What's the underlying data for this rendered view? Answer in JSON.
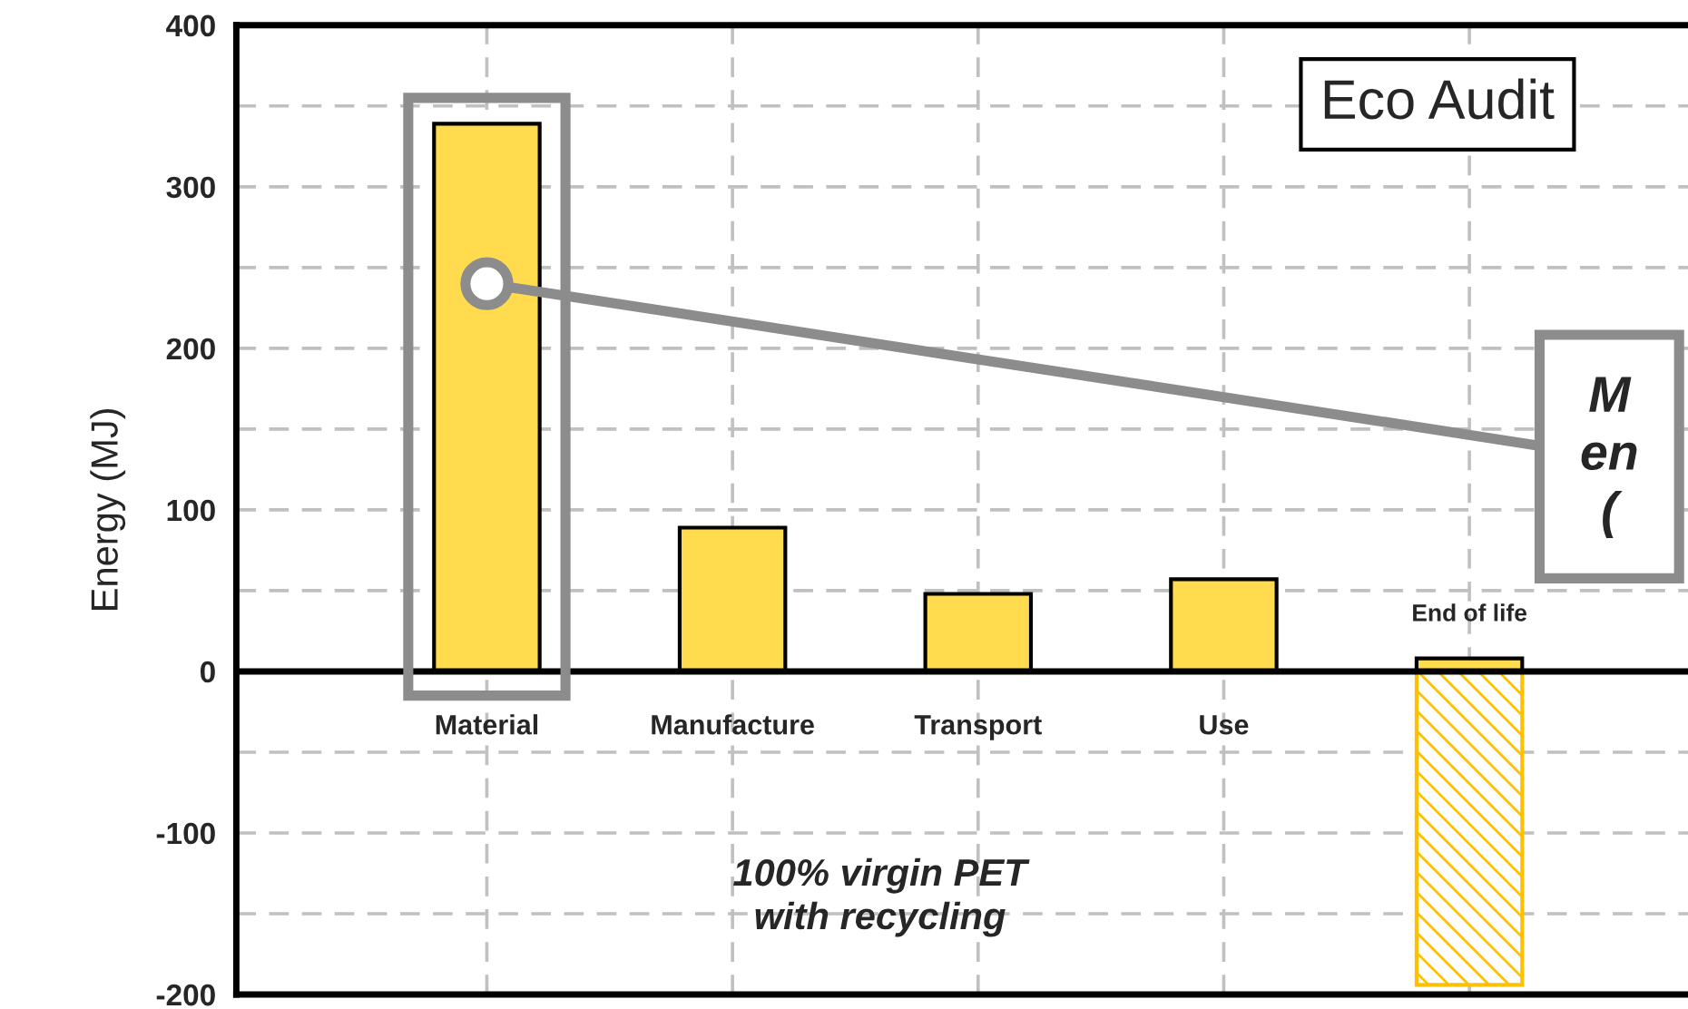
{
  "chart_data": {
    "type": "bar",
    "ylabel": "Energy (MJ)",
    "categories": [
      "Material",
      "Manufacture",
      "Transport",
      "Use",
      "End of life"
    ],
    "series": [
      {
        "color": "#ffdb4d",
        "values": [
          339,
          89,
          48,
          57,
          8
        ]
      },
      {
        "color": "#ffc000",
        "values": [
          null,
          null,
          null,
          null,
          -194
        ]
      }
    ],
    "ylim": [
      -200,
      400
    ],
    "yticks": [
      -200,
      {
        "value": -150,
        "label": null
      },
      -100,
      {
        "value": -50,
        "label": null
      },
      0,
      {
        "value": 50,
        "label": null
      },
      100,
      {
        "value": 150,
        "label": null
      },
      200,
      {
        "value": 250,
        "label": null
      },
      300,
      {
        "value": 350,
        "label": null
      },
      400
    ],
    "grid": true,
    "annotations": [
      "Eco Audit",
      "100% virgin PET\nwith recycling",
      {
        "text": "M\nen\n(",
        "x": "Material",
        "y": 240
      }
    ]
  }
}
